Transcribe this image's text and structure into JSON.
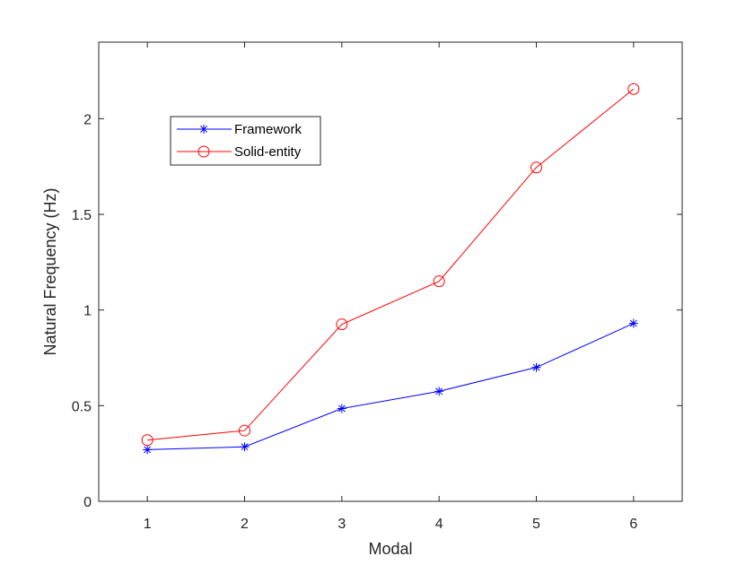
{
  "chart_data": {
    "type": "line",
    "title": "",
    "xlabel": "Modal",
    "ylabel": "Natural Frequency (Hz)",
    "x": [
      1,
      2,
      3,
      4,
      5,
      6
    ],
    "xlim": [
      0.5,
      6.5
    ],
    "ylim": [
      0,
      2.4
    ],
    "xticks": [
      "1",
      "2",
      "3",
      "4",
      "5",
      "6"
    ],
    "yticks": [
      "0",
      "0.5",
      "1",
      "1.5",
      "2"
    ],
    "grid": false,
    "legend_position": "top-left",
    "series": [
      {
        "name": "Framework",
        "values": [
          0.27,
          0.285,
          0.485,
          0.575,
          0.7,
          0.93
        ],
        "color": "#0000ff",
        "marker": "asterisk"
      },
      {
        "name": "Solid-entity",
        "values": [
          0.32,
          0.37,
          0.925,
          1.15,
          1.745,
          2.155
        ],
        "color": "#ff0000",
        "marker": "circle"
      }
    ]
  }
}
